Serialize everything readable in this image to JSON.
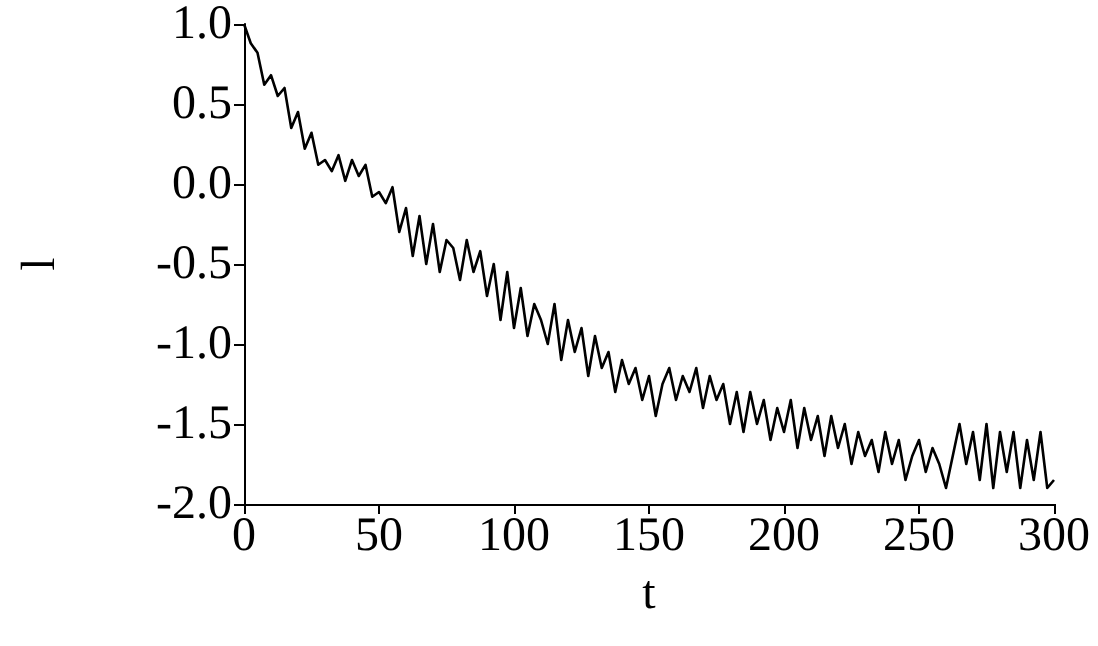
{
  "chart_data": {
    "type": "line",
    "xlabel": "t",
    "ylabel": "l",
    "x": [
      0,
      2.5,
      5,
      7.5,
      10,
      12.5,
      15,
      17.5,
      20,
      22.5,
      25,
      27.5,
      30,
      32.5,
      35,
      37.5,
      40,
      42.5,
      45,
      47.5,
      50,
      52.5,
      55,
      57.5,
      60,
      62.5,
      65,
      67.5,
      70,
      72.5,
      75,
      77.5,
      80,
      82.5,
      85,
      87.5,
      90,
      92.5,
      95,
      97.5,
      100,
      102.5,
      105,
      107.5,
      110,
      112.5,
      115,
      117.5,
      120,
      122.5,
      125,
      127.5,
      130,
      132.5,
      135,
      137.5,
      140,
      142.5,
      145,
      147.5,
      150,
      152.5,
      155,
      157.5,
      160,
      162.5,
      165,
      167.5,
      170,
      172.5,
      175,
      177.5,
      180,
      182.5,
      185,
      187.5,
      190,
      192.5,
      195,
      197.5,
      200,
      202.5,
      205,
      207.5,
      210,
      212.5,
      215,
      217.5,
      220,
      222.5,
      225,
      227.5,
      230,
      232.5,
      235,
      237.5,
      240,
      242.5,
      245,
      247.5,
      250,
      252.5,
      255,
      257.5,
      260,
      262.5,
      265,
      267.5,
      270,
      272.5,
      275,
      277.5,
      280,
      282.5,
      285,
      287.5,
      290,
      292.5,
      295,
      297.5,
      300
    ],
    "series": [
      {
        "color": "#000000",
        "values": [
          1.0,
          0.88,
          0.82,
          0.62,
          0.68,
          0.55,
          0.6,
          0.35,
          0.45,
          0.22,
          0.32,
          0.12,
          0.15,
          0.08,
          0.18,
          0.02,
          0.15,
          0.05,
          0.12,
          -0.08,
          -0.05,
          -0.12,
          -0.02,
          -0.3,
          -0.15,
          -0.45,
          -0.2,
          -0.5,
          -0.25,
          -0.55,
          -0.35,
          -0.4,
          -0.6,
          -0.35,
          -0.55,
          -0.42,
          -0.7,
          -0.5,
          -0.85,
          -0.55,
          -0.9,
          -0.65,
          -0.95,
          -0.75,
          -0.85,
          -1.0,
          -0.75,
          -1.1,
          -0.85,
          -1.05,
          -0.9,
          -1.2,
          -0.95,
          -1.15,
          -1.05,
          -1.3,
          -1.1,
          -1.25,
          -1.15,
          -1.35,
          -1.2,
          -1.45,
          -1.25,
          -1.15,
          -1.35,
          -1.2,
          -1.3,
          -1.15,
          -1.4,
          -1.2,
          -1.35,
          -1.25,
          -1.5,
          -1.3,
          -1.55,
          -1.3,
          -1.5,
          -1.35,
          -1.6,
          -1.4,
          -1.55,
          -1.35,
          -1.65,
          -1.4,
          -1.6,
          -1.45,
          -1.7,
          -1.45,
          -1.65,
          -1.5,
          -1.75,
          -1.55,
          -1.7,
          -1.6,
          -1.8,
          -1.55,
          -1.75,
          -1.6,
          -1.85,
          -1.7,
          -1.6,
          -1.8,
          -1.65,
          -1.75,
          -1.9,
          -1.7,
          -1.5,
          -1.75,
          -1.55,
          -1.85,
          -1.5,
          -1.9,
          -1.55,
          -1.8,
          -1.55,
          -1.9,
          -1.6,
          -1.85,
          -1.55,
          -1.9,
          -1.85
        ]
      }
    ],
    "xlim": [
      0,
      300
    ],
    "xticks": [
      0,
      50,
      100,
      150,
      200,
      250,
      300
    ],
    "ylim": [
      -2.0,
      1.0
    ],
    "yticks": [
      {
        "value": -2.0,
        "label": "-2.0"
      },
      {
        "value": -1.5,
        "label": "-1.5"
      },
      {
        "value": -1.0,
        "label": "-1.0"
      },
      {
        "value": -0.5,
        "label": "-0.5"
      },
      {
        "value": 0.0,
        "label": "0.0"
      },
      {
        "value": 0.5,
        "label": "0.5"
      },
      {
        "value": 1.0,
        "label": "1.0"
      }
    ],
    "grid": false,
    "marker": "none",
    "line_style": "solid"
  }
}
